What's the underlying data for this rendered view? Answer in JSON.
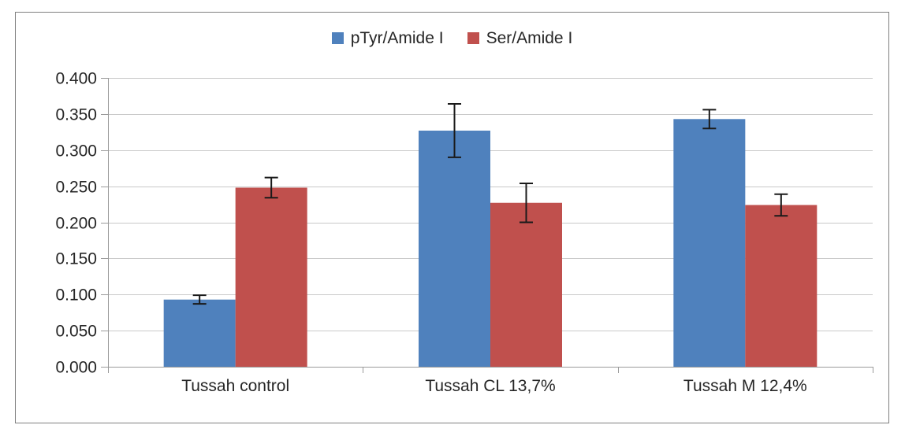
{
  "chart_data": {
    "type": "bar",
    "title": "",
    "xlabel": "",
    "ylabel": "",
    "categories": [
      "Tussah control",
      "Tussah CL 13,7%",
      "Tussah M 12,4%"
    ],
    "series": [
      {
        "name": "pTyr/Amide I",
        "color": "#4F81BD",
        "values": [
          0.093,
          0.327,
          0.343
        ],
        "errors": [
          0.006,
          0.037,
          0.013
        ]
      },
      {
        "name": "Ser/Amide I",
        "color": "#C0504D",
        "values": [
          0.248,
          0.227,
          0.224
        ],
        "errors": [
          0.014,
          0.027,
          0.015
        ]
      }
    ],
    "ylim": [
      0.0,
      0.4
    ],
    "y_tick_step": 0.05,
    "y_tick_labels": [
      "0.000",
      "0.050",
      "0.100",
      "0.150",
      "0.200",
      "0.250",
      "0.300",
      "0.350",
      "0.400"
    ],
    "grid": true,
    "legend_position": "top",
    "error_bars": true,
    "colors": {
      "gridline": "#c9c9c9",
      "axis": "#9a9a9a",
      "error_bar": "#1a1a1a",
      "text": "#262626",
      "frame_border": "#7f7f7f",
      "background": "#ffffff"
    }
  }
}
